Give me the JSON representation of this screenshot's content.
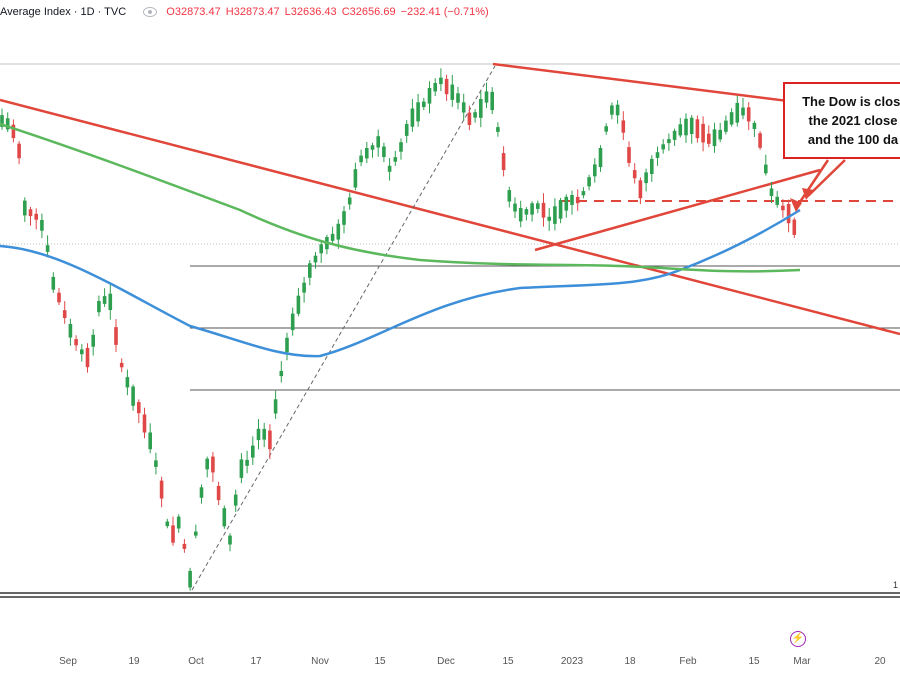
{
  "header": {
    "title": "Average Index · 1D · TVC",
    "open": "O32873.47",
    "high": "H32873.47",
    "low": "L32636.43",
    "close": "C32656.69",
    "change": "−232.41 (−0.71%)"
  },
  "callout": {
    "lines": [
      "The Dow is closi",
      "the 2021 close",
      "and the 100 da"
    ]
  },
  "edge_tag": "1",
  "colors": {
    "up": "#26a69a",
    "up_body": "#2e9e4f",
    "down": "#e04848",
    "ma100": "#3d8fd9",
    "ma200": "#5cb85c",
    "trendline": "#e0463a",
    "hline": "#555555",
    "dashed_red": "#e0463a"
  },
  "chart_data": {
    "type": "candlestick",
    "title": "",
    "x_axis_labels": [
      "Sep",
      "19",
      "Oct",
      "17",
      "Nov",
      "15",
      "Dec",
      "15",
      "2023",
      "18",
      "Feb",
      "15",
      "Mar",
      "20"
    ],
    "price_range_approx": [
      28600,
      34600
    ],
    "last_close": 32656.69,
    "horizontal_levels_approx": [
      33148,
      32200,
      31200,
      30200,
      28660
    ],
    "dashed_level_label": "2021 close",
    "series": [
      {
        "name": "100 day MA",
        "color": "blue"
      },
      {
        "name": "200 day MA",
        "color": "green"
      }
    ]
  }
}
